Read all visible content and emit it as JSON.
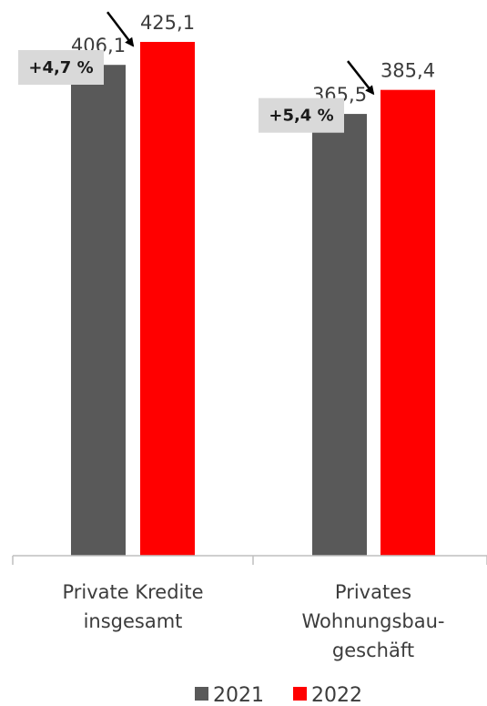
{
  "chart_data": {
    "type": "bar",
    "categories": [
      [
        "Private Kredite",
        "insgesamt"
      ],
      [
        "Privates",
        "Wohnungsbau-",
        "geschäft"
      ]
    ],
    "series": [
      {
        "name": "2021",
        "values": [
          406.1,
          365.5
        ],
        "labels": [
          "406,1",
          "365,5"
        ],
        "color": "#595959"
      },
      {
        "name": "2022",
        "values": [
          425.1,
          385.4
        ],
        "labels": [
          "425,1",
          "385,4"
        ],
        "color": "#ff0000"
      }
    ],
    "growth_labels": [
      "+4,7 %",
      "+5,4 %"
    ],
    "growth_box_color": "#d9d9d9",
    "axis_color": "#bfbfbf",
    "text_color": "#3c3c3c",
    "legend_position": "bottom",
    "grid": false
  }
}
